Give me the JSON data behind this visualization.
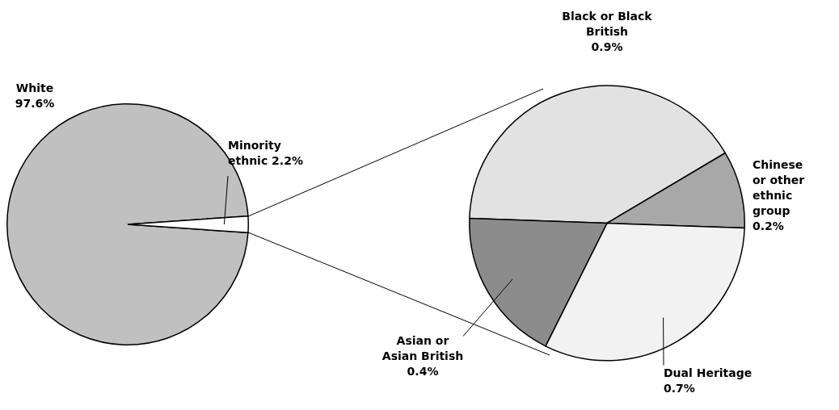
{
  "chart_data": [
    {
      "type": "pie",
      "categories": [
        "White",
        "Minority ethnic"
      ],
      "values": [
        97.6,
        2.2
      ],
      "colors": [
        "#c0c0c0",
        "#ffffff"
      ],
      "value_labels": [
        "97.6%",
        "2.2%"
      ],
      "legend": false
    },
    {
      "type": "pie",
      "categories": [
        "Black or Black British",
        "Chinese or other ethnic group",
        "Dual Heritage",
        "Asian or Asian British"
      ],
      "values": [
        0.9,
        0.2,
        0.7,
        0.4
      ],
      "colors": [
        "#e2e2e2",
        "#a8a8a8",
        "#f2f2f2",
        "#8c8c8c"
      ],
      "value_labels": [
        "0.9%",
        "0.2%",
        "0.7%",
        "0.4%"
      ],
      "legend": false
    }
  ]
}
